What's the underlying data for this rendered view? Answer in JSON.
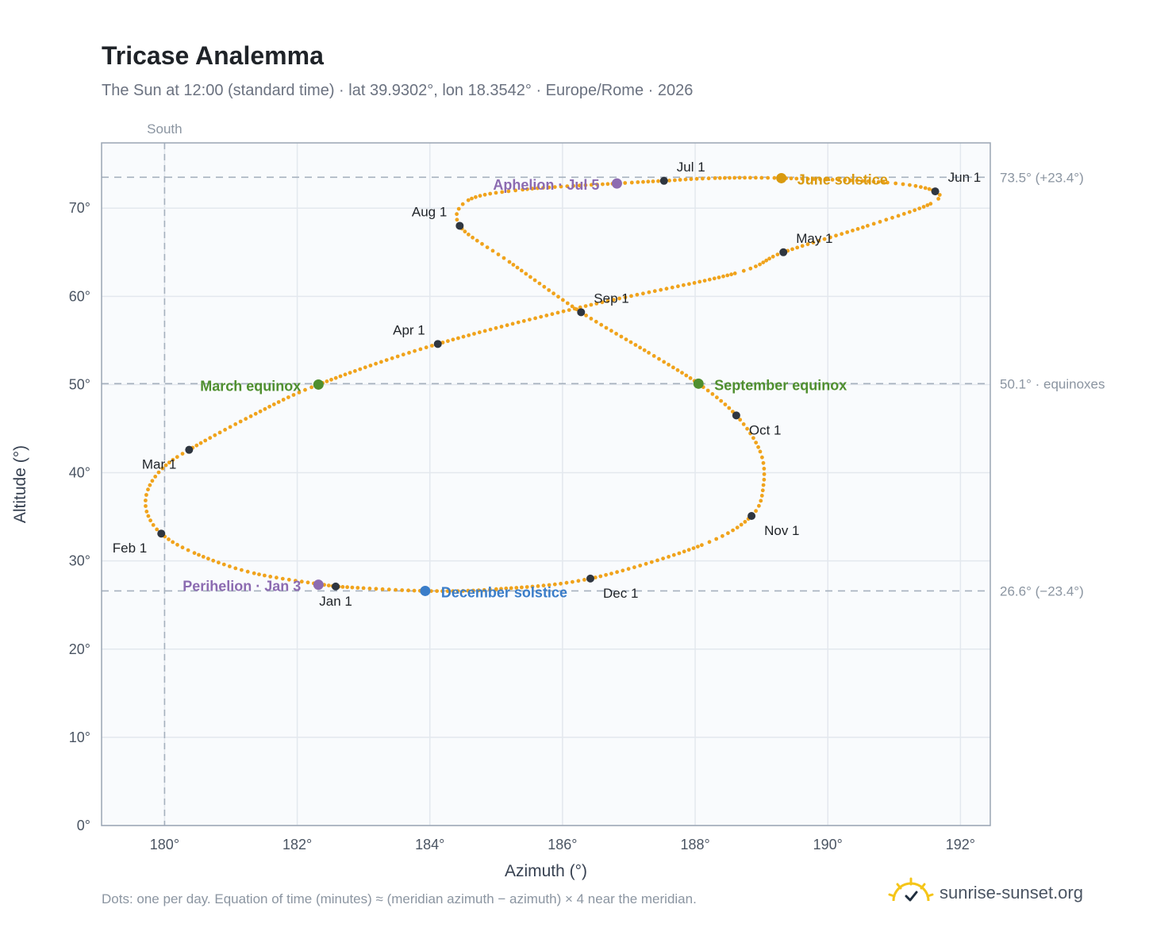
{
  "header": {
    "title": "Tricase Analemma",
    "subtitle": "The Sun at 12:00 (standard time) · lat 39.9302°, lon 18.3542° · Europe/Rome · 2026"
  },
  "footer": {
    "note": "Dots: one per day. Equation of time (minutes) ≈ (meridian azimuth − azimuth) × 4 near the meridian.",
    "brand": "sunrise-sunset.org"
  },
  "icons": {
    "brand": "sun-logo-icon"
  },
  "chart_data": {
    "type": "scatter",
    "title": "Tricase Analemma",
    "xlabel": "Azimuth (°)",
    "ylabel": "Altitude (°)",
    "xlim": [
      179.05,
      192.45
    ],
    "ylim": [
      0,
      77.4
    ],
    "xticks": [
      180,
      182,
      184,
      186,
      188,
      190,
      192
    ],
    "xtick_labels": [
      "180°",
      "182°",
      "184°",
      "186°",
      "188°",
      "190°",
      "192°"
    ],
    "yticks": [
      0,
      10,
      20,
      30,
      40,
      50,
      60,
      70
    ],
    "ytick_labels": [
      "0°",
      "10°",
      "20°",
      "30°",
      "40°",
      "50°",
      "60°",
      "70°"
    ],
    "grid": true,
    "colors": {
      "path": "#f0a31c",
      "marker": "#2f3640",
      "perihelion": "#8c6bb1",
      "aphelion": "#8c6bb1",
      "december": "#3a7dc9",
      "march": "#4f8f2f",
      "september": "#4f8f2f",
      "june": "#d99a10"
    },
    "reference_lines": {
      "vertical": {
        "x": 180,
        "label": "South"
      },
      "horizontal": [
        {
          "y": 73.5,
          "label": "73.5° (+23.4°)"
        },
        {
          "y": 50.1,
          "label": "50.1° · equinoxes"
        },
        {
          "y": 26.6,
          "label": "26.6° (−23.4°)"
        }
      ]
    },
    "path_keypoints": [
      {
        "x": 182.58,
        "y": 27.1
      },
      {
        "x": 181.35,
        "y": 28.6
      },
      {
        "x": 180.45,
        "y": 30.9
      },
      {
        "x": 179.95,
        "y": 33.1
      },
      {
        "x": 179.73,
        "y": 35.6
      },
      {
        "x": 179.75,
        "y": 38.1
      },
      {
        "x": 179.97,
        "y": 40.5
      },
      {
        "x": 180.37,
        "y": 42.6
      },
      {
        "x": 181.3,
        "y": 46.4
      },
      {
        "x": 182.32,
        "y": 50.0
      },
      {
        "x": 184.12,
        "y": 54.6
      },
      {
        "x": 186.35,
        "y": 58.9
      },
      {
        "x": 188.6,
        "y": 62.6
      },
      {
        "x": 189.33,
        "y": 65.0
      },
      {
        "x": 190.6,
        "y": 68.0
      },
      {
        "x": 191.55,
        "y": 70.5
      },
      {
        "x": 191.62,
        "y": 71.9
      },
      {
        "x": 190.9,
        "y": 72.9
      },
      {
        "x": 189.3,
        "y": 73.4
      },
      {
        "x": 188.3,
        "y": 73.4
      },
      {
        "x": 187.53,
        "y": 73.1
      },
      {
        "x": 186.82,
        "y": 72.8
      },
      {
        "x": 185.4,
        "y": 72.1
      },
      {
        "x": 184.58,
        "y": 70.9
      },
      {
        "x": 184.45,
        "y": 68.0
      },
      {
        "x": 185.2,
        "y": 63.9
      },
      {
        "x": 186.28,
        "y": 58.2
      },
      {
        "x": 187.3,
        "y": 53.6
      },
      {
        "x": 188.05,
        "y": 50.1
      },
      {
        "x": 188.62,
        "y": 46.5
      },
      {
        "x": 188.98,
        "y": 42.4
      },
      {
        "x": 189.03,
        "y": 38.6
      },
      {
        "x": 188.85,
        "y": 35.1
      },
      {
        "x": 188.1,
        "y": 31.8
      },
      {
        "x": 186.42,
        "y": 28.0
      },
      {
        "x": 185.0,
        "y": 26.8
      },
      {
        "x": 183.93,
        "y": 26.6
      },
      {
        "x": 182.58,
        "y": 27.1
      }
    ],
    "month_markers": [
      {
        "label": "Jan 1",
        "x": 182.58,
        "y": 27.1
      },
      {
        "label": "Feb 1",
        "x": 179.95,
        "y": 33.1
      },
      {
        "label": "Mar 1",
        "x": 180.37,
        "y": 42.6
      },
      {
        "label": "Apr 1",
        "x": 184.12,
        "y": 54.6
      },
      {
        "label": "May 1",
        "x": 189.33,
        "y": 65.0
      },
      {
        "label": "Jun 1",
        "x": 191.62,
        "y": 71.9
      },
      {
        "label": "Jul 1",
        "x": 187.53,
        "y": 73.1
      },
      {
        "label": "Aug 1",
        "x": 184.45,
        "y": 68.0
      },
      {
        "label": "Sep 1",
        "x": 186.28,
        "y": 58.2
      },
      {
        "label": "Oct 1",
        "x": 188.62,
        "y": 46.5
      },
      {
        "label": "Nov 1",
        "x": 188.85,
        "y": 35.1
      },
      {
        "label": "Dec 1",
        "x": 186.42,
        "y": 28.0
      }
    ],
    "events": [
      {
        "label": "Perihelion · Jan 3",
        "x": 182.32,
        "y": 27.3,
        "color": "#8c6bb1"
      },
      {
        "label": "March equinox",
        "x": 182.32,
        "y": 50.0,
        "color": "#4f8f2f"
      },
      {
        "label": "June solstice",
        "x": 189.3,
        "y": 73.4,
        "color": "#d99a10"
      },
      {
        "label": "Aphelion · Jul 5",
        "x": 186.82,
        "y": 72.8,
        "color": "#8c6bb1"
      },
      {
        "label": "September equinox",
        "x": 188.05,
        "y": 50.1,
        "color": "#4f8f2f"
      },
      {
        "label": "December solstice",
        "x": 183.93,
        "y": 26.6,
        "color": "#3a7dc9"
      }
    ]
  }
}
